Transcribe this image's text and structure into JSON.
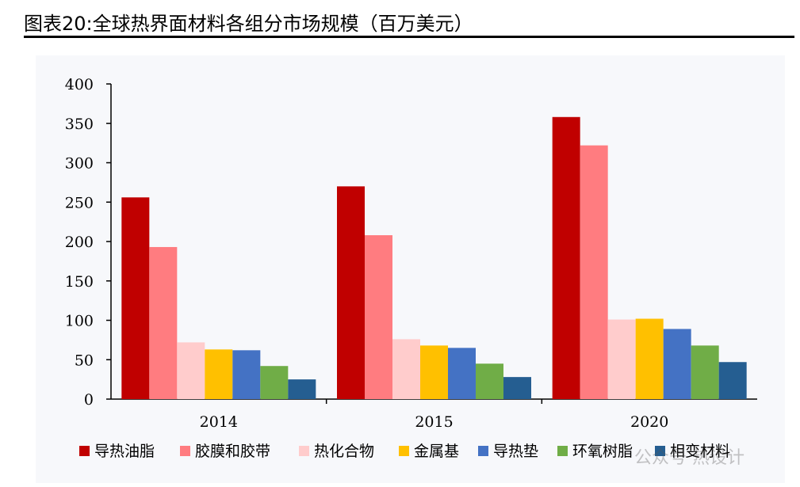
{
  "figure_title": "图表20:全球热界面材料各组分市场规模（百万美元）",
  "watermark": "公众号  热设计",
  "chart_data": {
    "type": "bar",
    "categories": [
      "2014",
      "2015",
      "2020"
    ],
    "ylim": [
      0,
      400
    ],
    "yticks": [
      0,
      50,
      100,
      150,
      200,
      250,
      300,
      350,
      400
    ],
    "legend_position": "bottom",
    "series": [
      {
        "name": "导热油脂",
        "color": "#c00000",
        "values": [
          256,
          270,
          358
        ]
      },
      {
        "name": "胶膜和胶带",
        "color": "#ff7c80",
        "values": [
          193,
          208,
          322
        ]
      },
      {
        "name": "热化合物",
        "color": "#ffcccc",
        "values": [
          72,
          76,
          101
        ]
      },
      {
        "name": "金属基",
        "color": "#ffc000",
        "values": [
          63,
          68,
          102
        ]
      },
      {
        "name": "导热垫",
        "color": "#4472c4",
        "values": [
          62,
          65,
          89
        ]
      },
      {
        "name": "环氧树脂",
        "color": "#70ad47",
        "values": [
          42,
          45,
          68
        ]
      },
      {
        "name": "相变材料",
        "color": "#255e91",
        "values": [
          25,
          28,
          47
        ]
      }
    ]
  }
}
